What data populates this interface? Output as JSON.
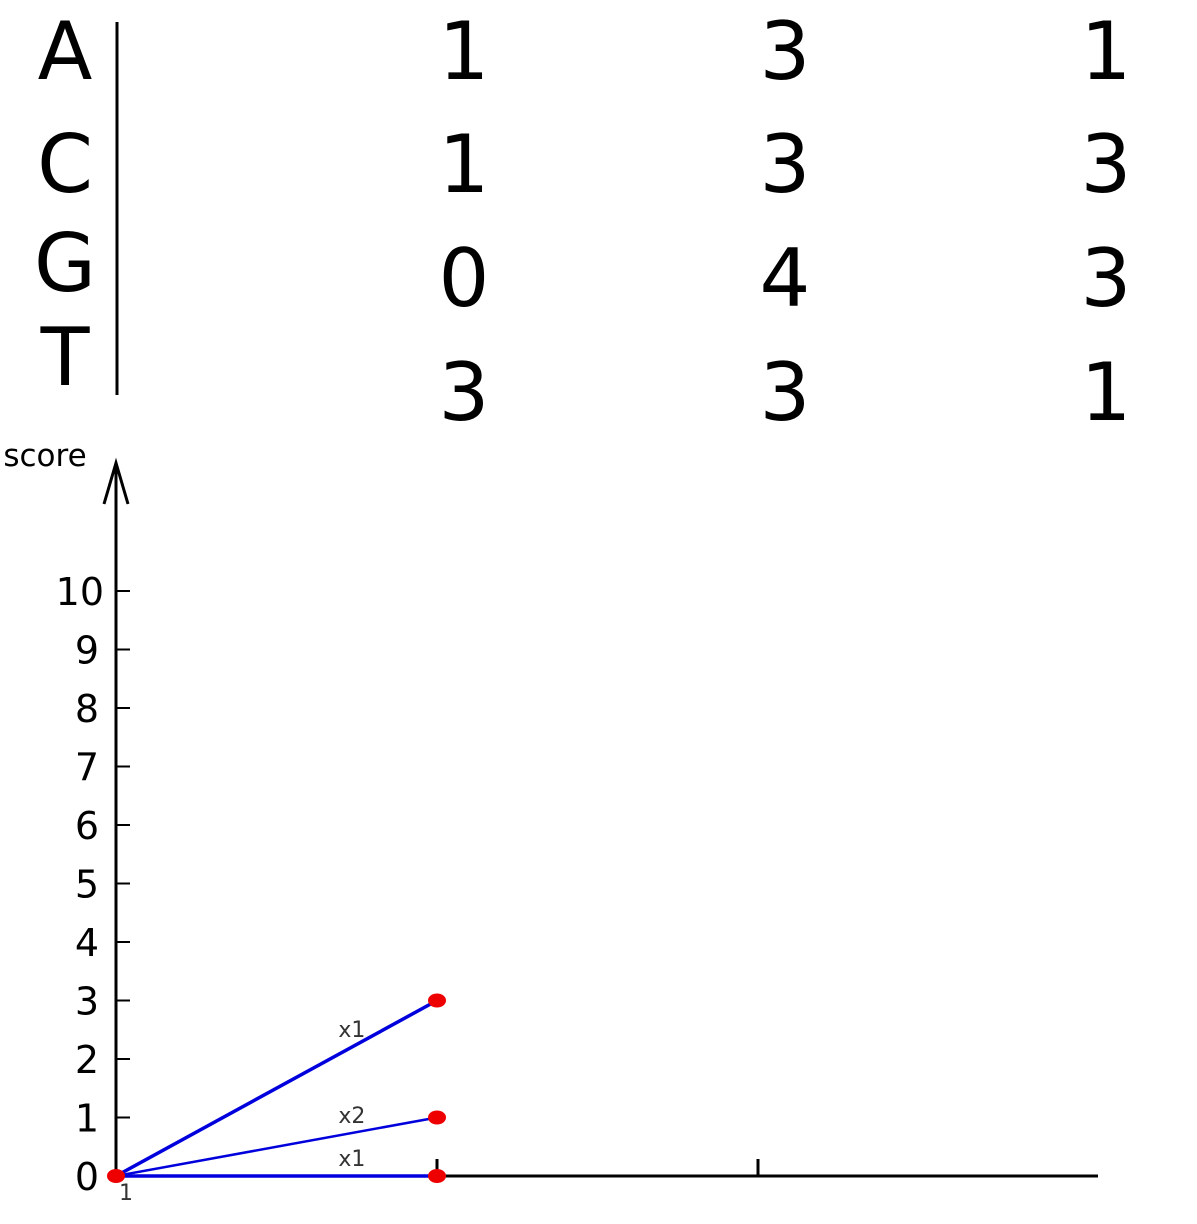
{
  "matrix": {
    "rows": [
      {
        "label": "A",
        "values": [
          "1",
          "3",
          "1"
        ]
      },
      {
        "label": "C",
        "values": [
          "1",
          "3",
          "3"
        ]
      },
      {
        "label": "G",
        "values": [
          "0",
          "4",
          "3"
        ]
      },
      {
        "label": "T",
        "values": [
          "3",
          "3",
          "1"
        ]
      }
    ]
  },
  "chart_data": {
    "type": "line",
    "ylabel": "score",
    "yticks": [
      "0",
      "1",
      "2",
      "3",
      "4",
      "5",
      "6",
      "7",
      "8",
      "9",
      "10"
    ],
    "xticks": [
      "1",
      "",
      ""
    ],
    "ylim": [
      0,
      10
    ],
    "points": [
      {
        "column": 1,
        "score": 0
      },
      {
        "column": 2,
        "score": 0
      },
      {
        "column": 2,
        "score": 1
      },
      {
        "column": 2,
        "score": 3
      }
    ],
    "edges": [
      {
        "from": [
          1,
          0
        ],
        "to": [
          2,
          3
        ],
        "label": "x1"
      },
      {
        "from": [
          1,
          0
        ],
        "to": [
          2,
          1
        ],
        "label": "x2"
      },
      {
        "from": [
          1,
          0
        ],
        "to": [
          2,
          0
        ],
        "label": "x1"
      }
    ],
    "colors": {
      "edge": "#0000dd",
      "point": "#ee0000",
      "axis": "#000000"
    }
  }
}
